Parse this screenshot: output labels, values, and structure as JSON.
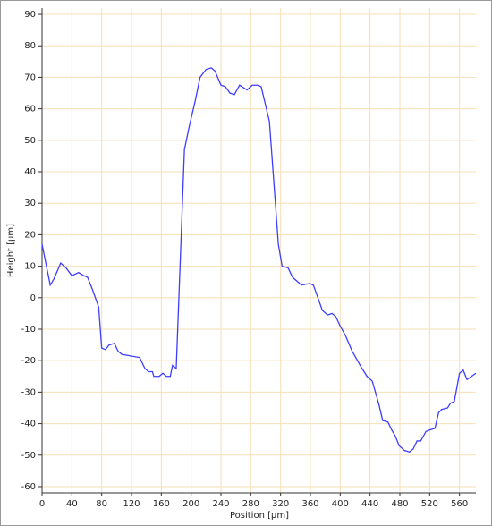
{
  "chart_data": {
    "type": "line",
    "x_label": "Position [µm]",
    "y_label": "Height [µm]",
    "x": [
      0,
      11,
      16,
      25,
      32,
      40,
      49,
      56,
      61,
      67,
      76,
      80,
      85,
      90,
      97,
      102,
      107,
      131,
      138,
      143,
      148,
      150,
      157,
      162,
      167,
      172,
      175,
      180,
      191,
      198,
      205,
      212,
      220,
      227,
      232,
      240,
      246,
      252,
      258,
      265,
      275,
      282,
      289,
      294,
      305,
      317,
      322,
      330,
      336,
      348,
      359,
      364,
      370,
      376,
      383,
      389,
      394,
      400,
      407,
      416,
      428,
      436,
      443,
      452,
      457,
      464,
      469,
      474,
      479,
      486,
      493,
      498,
      503,
      508,
      515,
      520,
      527,
      529,
      532,
      536,
      544,
      548,
      553,
      560,
      565,
      570,
      582
    ],
    "series": [
      {
        "name": "Height",
        "color": "#3d3dff",
        "values": [
          17,
          4,
          6,
          11,
          9.5,
          7,
          8,
          7,
          6.5,
          3,
          -3,
          -16,
          -16.5,
          -15,
          -14.5,
          -17,
          -18,
          -19,
          -22.5,
          -23.5,
          -23.5,
          -25,
          -25,
          -24,
          -25,
          -25,
          -21.5,
          -22.5,
          47,
          55,
          62,
          70,
          72.5,
          73,
          72,
          67.5,
          67,
          65,
          64.5,
          67.5,
          66,
          67.5,
          67.5,
          67,
          56,
          17,
          10,
          9.5,
          6.5,
          4,
          4.5,
          4,
          0,
          -4,
          -5.5,
          -5,
          -6,
          -9,
          -12,
          -17,
          -22,
          -25,
          -26.5,
          -34,
          -39,
          -39.5,
          -42,
          -44,
          -47,
          -48.5,
          -49,
          -48,
          -45.5,
          -45.5,
          -42.5,
          -42,
          -41.5,
          -39.5,
          -36.5,
          -35.5,
          -35,
          -33.5,
          -33,
          -24,
          -23,
          -26,
          -24
        ]
      }
    ],
    "xlim": [
      0,
      582
    ],
    "xticks": [
      0,
      40,
      80,
      120,
      160,
      200,
      240,
      280,
      320,
      360,
      400,
      440,
      480,
      520,
      560
    ],
    "ylim": [
      -62,
      92
    ],
    "yticks": [
      -60,
      -50,
      -40,
      -30,
      -20,
      -10,
      0,
      10,
      20,
      30,
      40,
      50,
      60,
      70,
      80,
      90
    ],
    "grid": true
  }
}
